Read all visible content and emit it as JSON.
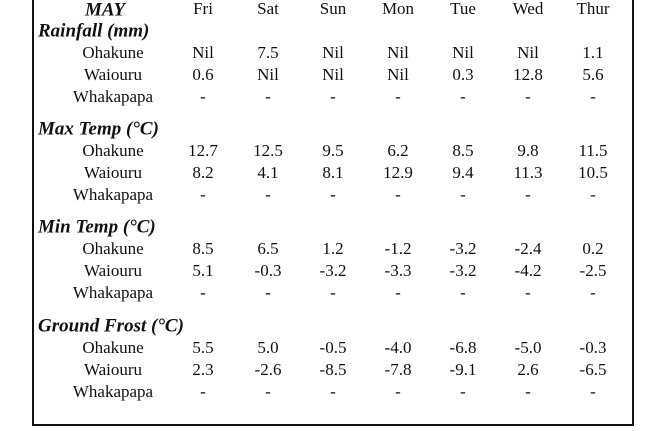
{
  "header": {
    "title": "MAY",
    "days": [
      "Fri",
      "Sat",
      "Sun",
      "Mon",
      "Tue",
      "Wed",
      "Thur"
    ]
  },
  "sections": [
    {
      "title": "Rainfall (mm)",
      "rows": [
        {
          "label": "Ohakune",
          "values": [
            "Nil",
            "7.5",
            "Nil",
            "Nil",
            "Nil",
            "Nil",
            "1.1"
          ]
        },
        {
          "label": "Waiouru",
          "values": [
            "0.6",
            "Nil",
            "Nil",
            "Nil",
            "0.3",
            "12.8",
            "5.6"
          ]
        },
        {
          "label": "Whakapapa",
          "values": [
            "-",
            "-",
            "-",
            "-",
            "-",
            "-",
            "-"
          ]
        }
      ]
    },
    {
      "title": "Max Temp (°C)",
      "rows": [
        {
          "label": "Ohakune",
          "values": [
            "12.7",
            "12.5",
            "9.5",
            "6.2",
            "8.5",
            "9.8",
            "11.5"
          ]
        },
        {
          "label": "Waiouru",
          "values": [
            "8.2",
            "4.1",
            "8.1",
            "12.9",
            "9.4",
            "11.3",
            "10.5"
          ]
        },
        {
          "label": "Whakapapa",
          "values": [
            "-",
            "-",
            "-",
            "-",
            "-",
            "-",
            "-"
          ]
        }
      ]
    },
    {
      "title": "Min Temp (°C)",
      "rows": [
        {
          "label": "Ohakune",
          "values": [
            "8.5",
            "6.5",
            "1.2",
            "-1.2",
            "-3.2",
            "-2.4",
            "0.2"
          ]
        },
        {
          "label": "Waiouru",
          "values": [
            "5.1",
            "-0.3",
            "-3.2",
            "-3.3",
            "-3.2",
            "-4.2",
            "-2.5"
          ]
        },
        {
          "label": "Whakapapa",
          "values": [
            "-",
            "-",
            "-",
            "-",
            "-",
            "-",
            "-"
          ]
        }
      ]
    },
    {
      "title": "Ground Frost (°C)",
      "rows": [
        {
          "label": "Ohakune",
          "values": [
            "5.5",
            "5.0",
            "-0.5",
            "-4.0",
            "-6.8",
            "-5.0",
            "-0.3"
          ]
        },
        {
          "label": "Waiouru",
          "values": [
            "2.3",
            "-2.6",
            "-8.5",
            "-7.8",
            "-9.1",
            "2.6",
            "-6.5"
          ]
        },
        {
          "label": "Whakapapa",
          "values": [
            "-",
            "-",
            "-",
            "-",
            "-",
            "-",
            "-"
          ]
        }
      ]
    }
  ]
}
